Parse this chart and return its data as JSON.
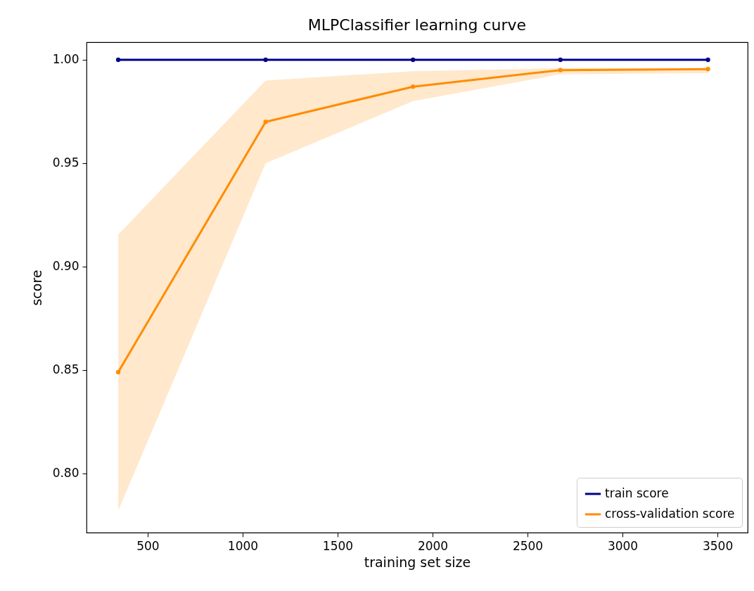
{
  "chart_data": {
    "type": "line",
    "title": "MLPClassifier learning curve",
    "xlabel": "training set size",
    "ylabel": "score",
    "x": [
      345,
      1121,
      1897,
      2673,
      3450
    ],
    "series": [
      {
        "name": "train score",
        "color": "#00008b",
        "values": [
          1.0,
          1.0,
          1.0,
          1.0,
          1.0
        ]
      },
      {
        "name": "cross-validation score",
        "color": "#ff8c00",
        "values": [
          0.849,
          0.97,
          0.987,
          0.995,
          0.9955
        ],
        "lower": [
          0.782,
          0.95,
          0.98,
          0.993,
          0.9935
        ],
        "upper": [
          0.9155,
          0.99,
          0.9945,
          0.996,
          0.996
        ]
      }
    ],
    "xlim": [
      178,
      3659
    ],
    "xticks": [
      500,
      1000,
      1500,
      2000,
      2500,
      3000,
      3500
    ],
    "ylim": [
      0.7714,
      1.0085
    ],
    "yticks": [
      {
        "value": 0.8,
        "label": "0.80"
      },
      0.85,
      {
        "value": 0.9,
        "label": "0.90"
      },
      0.95,
      {
        "value": 1.0,
        "label": "1.00"
      }
    ],
    "grid": false,
    "legend": "bottom right",
    "marker": "circle",
    "line_style": "solid"
  }
}
